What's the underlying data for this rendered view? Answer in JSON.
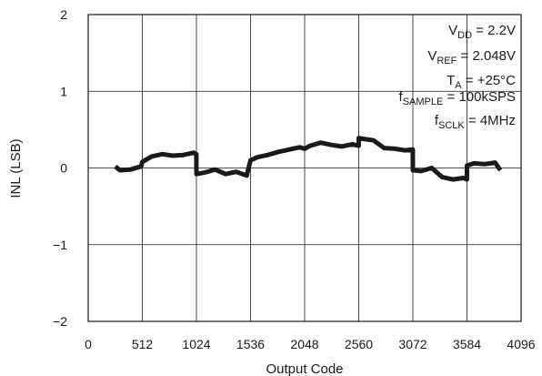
{
  "chart_data": {
    "type": "line",
    "xlabel": "Output Code",
    "ylabel": "INL (LSB)",
    "xlim": [
      0,
      4096
    ],
    "ylim": [
      -2,
      2
    ],
    "xticks": [
      0,
      512,
      1024,
      1536,
      2048,
      2560,
      3072,
      3584,
      4096
    ],
    "yticks": [
      -2,
      -1,
      0,
      1,
      2
    ],
    "ytick_labels": [
      "−2",
      "−1",
      "0",
      "1",
      "2"
    ],
    "grid": true,
    "series": [
      {
        "x": [
          256,
          300,
          400,
          500,
          512,
          600,
          700,
          800,
          900,
          1000,
          1023,
          1024,
          1100,
          1200,
          1300,
          1400,
          1500,
          1536,
          1600,
          1700,
          1800,
          1900,
          2000,
          2048,
          2100,
          2200,
          2300,
          2400,
          2500,
          2559,
          2560,
          2600,
          2700,
          2800,
          2900,
          3000,
          3071,
          3072,
          3150,
          3250,
          3350,
          3450,
          3550,
          3583,
          3584,
          3650,
          3750,
          3850,
          3900
        ],
        "y": [
          0.02,
          -0.03,
          -0.02,
          0.02,
          0.08,
          0.15,
          0.18,
          0.16,
          0.17,
          0.2,
          0.18,
          -0.08,
          -0.06,
          -0.02,
          -0.08,
          -0.05,
          -0.1,
          0.1,
          0.14,
          0.17,
          0.21,
          0.24,
          0.27,
          0.25,
          0.29,
          0.33,
          0.3,
          0.28,
          0.31,
          0.29,
          0.39,
          0.38,
          0.36,
          0.26,
          0.25,
          0.23,
          0.24,
          -0.03,
          -0.04,
          0.0,
          -0.12,
          -0.15,
          -0.13,
          -0.15,
          0.03,
          0.06,
          0.05,
          0.07,
          -0.03
        ]
      }
    ],
    "annotations": [
      {
        "main": "V",
        "sub": "DD",
        "rest": " = 2.2V"
      },
      {
        "main": "V",
        "sub": "REF",
        "rest": " = 2.048V"
      },
      {
        "main": "T",
        "sub": "A",
        "rest": " = +25°C"
      },
      {
        "main": "f",
        "sub": "SAMPLE",
        "rest": " = 100kSPS"
      },
      {
        "main": "f",
        "sub": "SCLK",
        "rest": " = 4MHz"
      }
    ]
  }
}
